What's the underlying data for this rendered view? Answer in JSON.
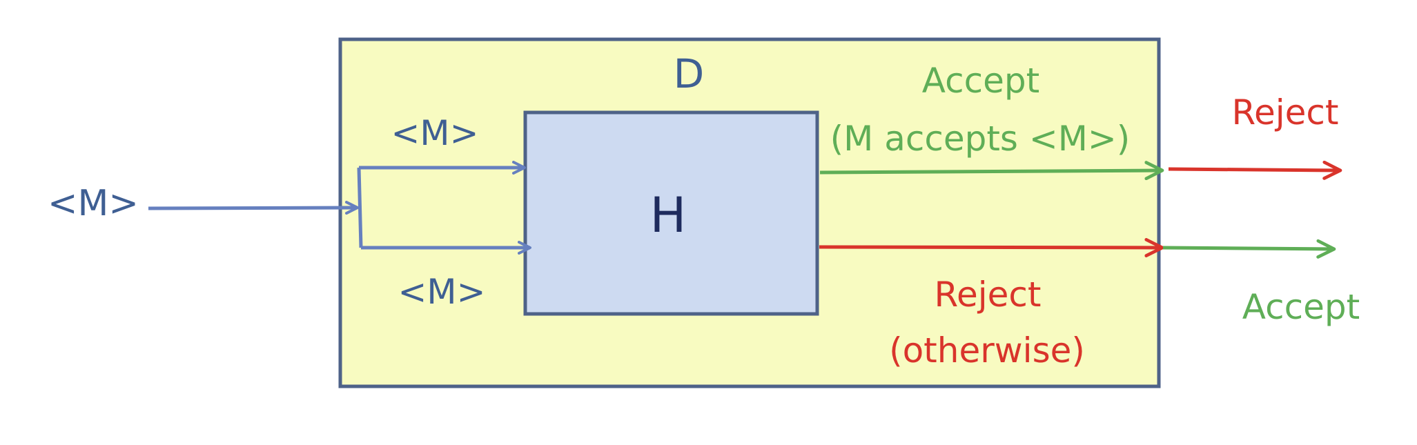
{
  "colors": {
    "outer_fill": "#f8fbc1",
    "outer_stroke": "#4e6288",
    "inner_fill": "#cddaf1",
    "inner_stroke": "#4e6288",
    "blue_line": "#6680bf",
    "blue_text": "#3f5f93",
    "accept_green": "#5fae57",
    "reject_red": "#d9342b",
    "h_text": "#1e2b5e"
  },
  "labels": {
    "input": "<M>",
    "machine_d": "D",
    "machine_h": "H",
    "top_branch": "<M>",
    "bottom_branch": "<M>",
    "h_accept": "Accept",
    "h_accept_condition": "(M accepts <M>)",
    "h_reject": "Reject",
    "h_reject_condition": "(otherwise)",
    "d_reject": "Reject",
    "d_accept": "Accept"
  }
}
